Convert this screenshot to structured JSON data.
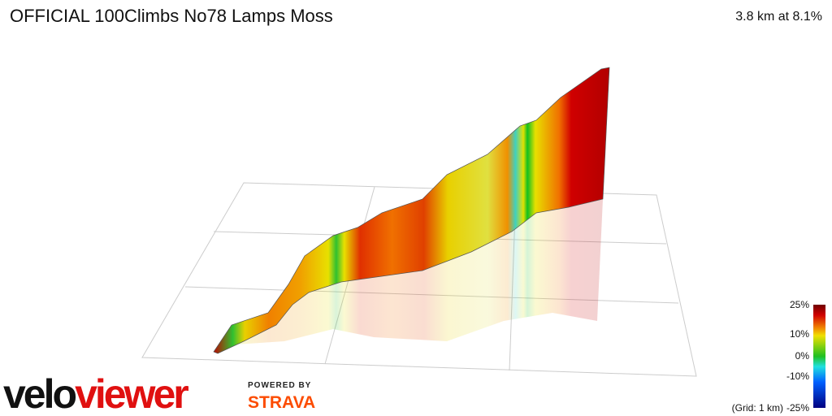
{
  "header": {
    "title": "OFFICIAL 100Climbs No78 Lamps Moss",
    "stats": "3.8 km at 8.1%"
  },
  "legend": {
    "labels": [
      "25%",
      "10%",
      "0%",
      "-10%",
      "-25%"
    ],
    "grid_note": "(Grid: 1 km)"
  },
  "footer": {
    "brand": [
      "velo",
      "viewer"
    ],
    "powered_by": "POWERED BY",
    "strava": "STRAVA"
  }
}
